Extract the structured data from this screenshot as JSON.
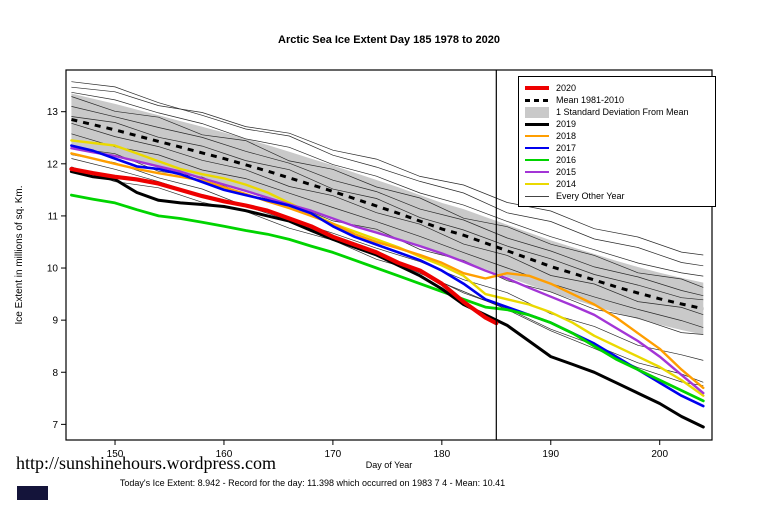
{
  "footer": {
    "url": "http://sunshinehours.wordpress.com",
    "caption": "Today's Ice Extent: 8.942  - Record for the day: 11.398 which occurred on 1983 7 4  - Mean: 10.41"
  },
  "chart_data": {
    "type": "line",
    "title": "Arctic Sea Ice Extent Day 185 1978 to 2020",
    "xlabel": "Day of Year",
    "ylabel": "Ice Extent in millions of sq. Km.",
    "xlim": [
      145.5,
      204.8
    ],
    "ylim": [
      6.7,
      13.8
    ],
    "xticks": [
      150,
      160,
      170,
      180,
      190,
      200
    ],
    "yticks": [
      7,
      8,
      9,
      10,
      11,
      12,
      13
    ],
    "marker_day": 185,
    "x": [
      146,
      148,
      150,
      152,
      154,
      156,
      158,
      160,
      162,
      164,
      166,
      168,
      170,
      172,
      174,
      176,
      178,
      180,
      182,
      184,
      186,
      188,
      190,
      192,
      194,
      196,
      198,
      200,
      202,
      204
    ],
    "mean": {
      "name": "Mean 1981-2010",
      "color": "#000000",
      "values": [
        12.85,
        12.75,
        12.65,
        12.54,
        12.43,
        12.32,
        12.21,
        12.1,
        11.98,
        11.86,
        11.73,
        11.6,
        11.47,
        11.33,
        11.19,
        11.05,
        10.9,
        10.75,
        10.63,
        10.48,
        10.33,
        10.18,
        10.03,
        9.9,
        9.77,
        9.64,
        9.52,
        9.41,
        9.31,
        9.22
      ]
    },
    "band": {
      "name": "1 Standard Deviation From Mean",
      "sd": 0.5,
      "color": "#c9c9c9"
    },
    "series": [
      {
        "name": "2014",
        "color": "#ead900",
        "width": 2.4,
        "values": [
          12.45,
          12.4,
          12.35,
          12.2,
          12.05,
          11.9,
          11.8,
          11.72,
          11.6,
          11.45,
          11.25,
          11.05,
          10.85,
          10.7,
          10.55,
          10.4,
          10.22,
          10.05,
          9.85,
          9.5,
          9.4,
          9.3,
          9.15,
          8.95,
          8.7,
          8.5,
          8.3,
          8.1,
          7.85,
          7.55
        ]
      },
      {
        "name": "2015",
        "color": "#a335d6",
        "width": 2.4,
        "values": [
          12.3,
          12.22,
          12.15,
          12.05,
          11.95,
          11.85,
          11.72,
          11.6,
          11.48,
          11.35,
          11.22,
          11.1,
          10.95,
          10.8,
          10.68,
          10.55,
          10.42,
          10.28,
          10.12,
          9.95,
          9.8,
          9.62,
          9.45,
          9.28,
          9.1,
          8.85,
          8.6,
          8.3,
          7.95,
          7.6
        ]
      },
      {
        "name": "2018",
        "color": "#ff9e00",
        "width": 2.4,
        "values": [
          12.2,
          12.1,
          12.0,
          11.9,
          11.82,
          11.75,
          11.68,
          11.55,
          11.42,
          11.28,
          11.15,
          11.0,
          10.85,
          10.65,
          10.5,
          10.38,
          10.25,
          10.1,
          9.9,
          9.8,
          9.9,
          9.85,
          9.7,
          9.5,
          9.3,
          9.05,
          8.75,
          8.45,
          8.05,
          7.7
        ]
      },
      {
        "name": "2017",
        "color": "#0000ee",
        "width": 2.6,
        "values": [
          12.35,
          12.25,
          12.1,
          11.95,
          11.9,
          11.8,
          11.65,
          11.5,
          11.4,
          11.3,
          11.2,
          11.05,
          10.8,
          10.6,
          10.45,
          10.3,
          10.15,
          9.95,
          9.7,
          9.4,
          9.25,
          9.1,
          8.95,
          8.75,
          8.55,
          8.3,
          8.05,
          7.8,
          7.55,
          7.35
        ]
      },
      {
        "name": "2016",
        "color": "#00d400",
        "width": 2.8,
        "values": [
          11.4,
          11.32,
          11.25,
          11.12,
          11.0,
          10.95,
          10.88,
          10.8,
          10.72,
          10.65,
          10.55,
          10.42,
          10.3,
          10.15,
          10.0,
          9.85,
          9.7,
          9.55,
          9.4,
          9.25,
          9.2,
          9.1,
          8.95,
          8.75,
          8.5,
          8.25,
          8.05,
          7.85,
          7.65,
          7.45
        ]
      },
      {
        "name": "2019",
        "color": "#000000",
        "width": 3,
        "values": [
          11.85,
          11.75,
          11.7,
          11.45,
          11.3,
          11.25,
          11.22,
          11.18,
          11.1,
          11.0,
          10.9,
          10.72,
          10.55,
          10.4,
          10.25,
          10.05,
          9.85,
          9.6,
          9.3,
          9.1,
          8.9,
          8.6,
          8.3,
          8.15,
          8.0,
          7.8,
          7.6,
          7.4,
          7.15,
          6.95
        ]
      },
      {
        "name": "2020",
        "color": "#ee0000",
        "width": 4.2,
        "x": [
          146,
          148,
          150,
          152,
          154,
          156,
          158,
          160,
          162,
          164,
          166,
          168,
          170,
          172,
          174,
          176,
          178,
          180,
          182,
          184,
          185
        ],
        "values": [
          11.9,
          11.82,
          11.75,
          11.7,
          11.62,
          11.5,
          11.38,
          11.28,
          11.2,
          11.1,
          10.95,
          10.8,
          10.6,
          10.45,
          10.3,
          10.1,
          9.95,
          9.7,
          9.35,
          9.05,
          8.942
        ]
      }
    ],
    "other_years": {
      "name": "Every Other Year",
      "color": "#2b2b2b",
      "width": 0.7,
      "x": [
        146,
        150,
        154,
        158,
        162,
        166,
        170,
        174,
        178,
        182,
        186,
        190,
        194,
        198,
        202,
        204
      ],
      "lines": [
        [
          13.6,
          13.45,
          13.2,
          12.9,
          12.7,
          12.5,
          12.2,
          11.9,
          11.7,
          11.4,
          11.1,
          10.85,
          10.6,
          10.35,
          10.15,
          10.05
        ],
        [
          13.4,
          13.2,
          13.0,
          12.75,
          12.5,
          12.3,
          12.0,
          11.75,
          11.45,
          11.2,
          10.9,
          10.6,
          10.35,
          10.1,
          9.9,
          9.8
        ],
        [
          13.25,
          13.05,
          12.85,
          12.6,
          12.4,
          12.1,
          11.85,
          11.6,
          11.3,
          11.0,
          10.75,
          10.5,
          10.2,
          9.95,
          9.75,
          9.65
        ],
        [
          13.1,
          12.9,
          12.7,
          12.5,
          12.25,
          12.0,
          11.7,
          11.45,
          11.15,
          10.9,
          10.6,
          10.3,
          10.05,
          9.8,
          9.6,
          9.5
        ],
        [
          12.95,
          12.75,
          12.55,
          12.3,
          12.1,
          11.85,
          11.55,
          11.3,
          11.0,
          10.7,
          10.45,
          10.15,
          9.9,
          9.65,
          9.45,
          9.35
        ],
        [
          12.75,
          12.55,
          12.3,
          12.1,
          11.85,
          11.6,
          11.35,
          11.1,
          10.8,
          10.5,
          10.2,
          9.9,
          9.65,
          9.4,
          9.2,
          9.1
        ],
        [
          12.55,
          12.35,
          12.15,
          11.9,
          11.7,
          11.45,
          11.15,
          10.9,
          10.6,
          10.3,
          10.0,
          9.7,
          9.45,
          9.2,
          9.0,
          8.9
        ],
        [
          12.35,
          12.15,
          11.9,
          11.7,
          11.45,
          11.2,
          10.95,
          10.7,
          10.4,
          10.1,
          9.8,
          9.5,
          9.25,
          9.0,
          8.8,
          8.7
        ],
        [
          12.1,
          11.9,
          11.65,
          11.4,
          11.2,
          10.95,
          10.65,
          10.4,
          10.1,
          9.8,
          9.5,
          9.15,
          8.85,
          8.55,
          8.3,
          8.2
        ],
        [
          11.9,
          11.7,
          11.5,
          11.3,
          11.05,
          10.8,
          10.5,
          10.2,
          9.9,
          9.55,
          9.2,
          8.85,
          8.5,
          8.2,
          7.95,
          7.85
        ],
        [
          13.5,
          13.35,
          13.15,
          12.95,
          12.75,
          12.55,
          12.3,
          12.05,
          11.8,
          11.55,
          11.3,
          11.05,
          10.8,
          10.55,
          10.35,
          10.25
        ],
        [
          12.2,
          12.0,
          11.75,
          11.5,
          11.2,
          10.9,
          10.6,
          10.25,
          9.9,
          9.55,
          9.2,
          8.8,
          8.45,
          8.1,
          7.8,
          7.7
        ]
      ]
    },
    "legend": [
      {
        "label": "2020",
        "type": "line",
        "color": "#ee0000",
        "thick": 4
      },
      {
        "label": "Mean 1981-2010",
        "type": "dashed",
        "color": "#000000"
      },
      {
        "label": "1 Standard Deviation From Mean",
        "type": "box",
        "color": "#c9c9c9"
      },
      {
        "label": "2019",
        "type": "line",
        "color": "#000000",
        "thick": 3
      },
      {
        "label": "2018",
        "type": "line",
        "color": "#ff9e00",
        "thick": 2.5
      },
      {
        "label": "2017",
        "type": "line",
        "color": "#0000ee",
        "thick": 2.5
      },
      {
        "label": "2016",
        "type": "line",
        "color": "#00d400",
        "thick": 2.5
      },
      {
        "label": "2015",
        "type": "line",
        "color": "#a335d6",
        "thick": 2.5
      },
      {
        "label": "2014",
        "type": "line",
        "color": "#ead900",
        "thick": 2.5
      },
      {
        "label": "Every Other Year",
        "type": "line",
        "color": "#444444",
        "thick": 1
      }
    ]
  }
}
